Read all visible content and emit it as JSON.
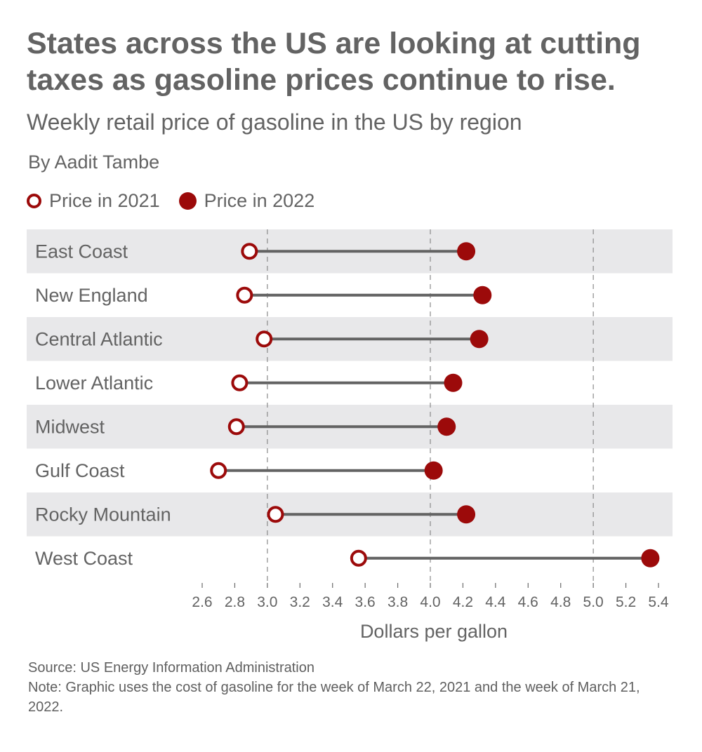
{
  "header": {
    "title": "States across the US are looking at cutting taxes as gasoline prices continue to rise.",
    "subtitle": "Weekly retail price of gasoline in the US by region",
    "byline": "By Aadit Tambe"
  },
  "legend": {
    "items": [
      {
        "label": "Price in 2021",
        "style": "open"
      },
      {
        "label": "Price in 2022",
        "style": "filled"
      }
    ]
  },
  "footer": {
    "source": "Source: US Energy Information Administration",
    "note": "Note: Graphic uses the cost of gasoline for the week of March 22, 2021 and the week of March 21, 2022."
  },
  "colors": {
    "accent": "#9c0a0a",
    "connector": "#636363",
    "band": "#e8e8ea",
    "text": "#636363"
  },
  "chart_data": {
    "type": "dumbbell",
    "xlabel": "Dollars per gallon",
    "xlim": [
      2.6,
      5.4
    ],
    "ticks": [
      "2.6",
      "2.8",
      "3.0",
      "3.2",
      "3.4",
      "3.6",
      "3.8",
      "4.0",
      "4.2",
      "4.4",
      "4.6",
      "4.8",
      "5.0",
      "5.2",
      "5.4"
    ],
    "reference_lines": [
      3.0,
      4.0,
      5.0
    ],
    "categories": [
      "East Coast",
      "New England",
      "Central Atlantic",
      "Lower Atlantic",
      "Midwest",
      "Gulf Coast",
      "Rocky Mountain",
      "West Coast"
    ],
    "series": [
      {
        "name": "Price in 2021",
        "values": [
          2.89,
          2.86,
          2.98,
          2.83,
          2.81,
          2.7,
          3.05,
          3.56
        ]
      },
      {
        "name": "Price in 2022",
        "values": [
          4.22,
          4.32,
          4.3,
          4.14,
          4.1,
          4.02,
          4.22,
          5.35
        ]
      }
    ]
  }
}
